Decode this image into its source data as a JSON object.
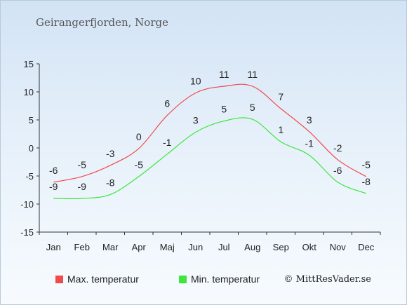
{
  "place": "Geirangerfjorden, Norge",
  "copyright": "© MittResVader.se",
  "chart_data": {
    "type": "line",
    "title": "",
    "xlabel": "",
    "ylabel": "",
    "ylim": [
      -15,
      15
    ],
    "yticks": [
      -15,
      -10,
      -5,
      0,
      5,
      10,
      15
    ],
    "grid": false,
    "legend_position": "bottom",
    "categories": [
      "Jan",
      "Feb",
      "Mar",
      "Apr",
      "Maj",
      "Jun",
      "Jul",
      "Aug",
      "Sep",
      "Okt",
      "Nov",
      "Dec"
    ],
    "series": [
      {
        "name": "Max. temperatur",
        "color": "#f04a4a",
        "values": [
          -6,
          -5,
          -3,
          0,
          6,
          10,
          11,
          11,
          7,
          3,
          -2,
          -5
        ],
        "line_values": [
          -6.1,
          -5.1,
          -3.1,
          -0.1,
          5.8,
          9.8,
          11,
          11,
          7,
          2.9,
          -2.1,
          -5.1
        ],
        "labels": [
          "-6",
          "-5",
          "-3",
          "0",
          "6",
          "10",
          "11",
          "11",
          "7",
          "3",
          "-2",
          "-5"
        ]
      },
      {
        "name": "Min. temperatur",
        "color": "#3de63d",
        "values": [
          -9,
          -9,
          -8,
          -5,
          -1,
          3,
          5,
          5,
          1,
          -1,
          -6,
          -8
        ],
        "line_values": [
          -9,
          -9,
          -8.3,
          -5.1,
          -1.1,
          2.8,
          4.8,
          5.1,
          1.1,
          -1.3,
          -6.1,
          -8.1
        ],
        "labels": [
          "-9",
          "-9",
          "-8",
          "-5",
          "-1",
          "3",
          "5",
          "5",
          "1",
          "-1",
          "-6",
          "-8"
        ]
      }
    ]
  }
}
